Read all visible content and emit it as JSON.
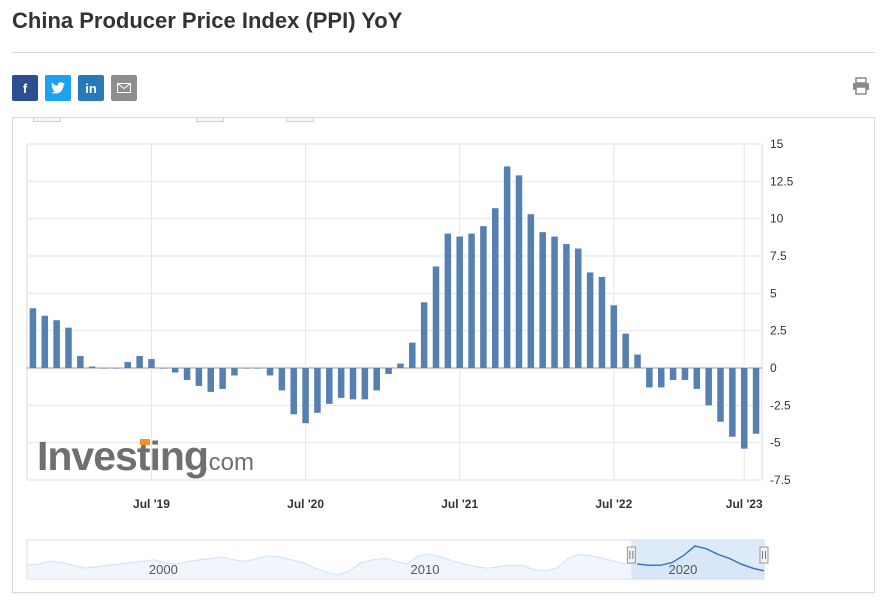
{
  "page": {
    "title": "China Producer Price Index (PPI) YoY"
  },
  "share": {
    "facebook_icon": "f",
    "twitter_icon": "twitter-bird",
    "linkedin_icon": "in",
    "email_icon": "envelope",
    "print_icon": "printer"
  },
  "watermark": {
    "brand": "Investing",
    "suffix": ".com"
  },
  "colors": {
    "bar": "#5580b0",
    "grid": "#e6e6e6",
    "navigator_fill": "#dbe9f8",
    "navigator_line": "#6fa0d6"
  },
  "chart_data": {
    "type": "bar",
    "series": [
      {
        "values": [
          4.0,
          3.5,
          3.2,
          2.7,
          0.8,
          0.1,
          0.0,
          0.0,
          0.4,
          0.8,
          0.6,
          0.0,
          -0.3,
          -0.8,
          -1.2,
          -1.6,
          -1.4,
          -0.5,
          0.0,
          0.0,
          -0.5,
          -1.5,
          -3.1,
          -3.7,
          -3.0,
          -2.4,
          -2.0,
          -2.1,
          -2.1,
          -1.5,
          -0.4,
          0.3,
          1.7,
          4.4,
          6.8,
          9.0,
          8.8,
          9.0,
          9.5,
          10.7,
          13.5,
          12.9,
          10.3,
          9.1,
          8.8,
          8.3,
          8.0,
          6.4,
          6.1,
          4.2,
          2.3,
          0.9,
          -1.3,
          -1.3,
          -0.8,
          -0.8,
          -1.4,
          -2.5,
          -3.6,
          -4.6,
          -5.4,
          -4.4
        ]
      }
    ],
    "x_tick_labels": [
      "Jul '19",
      "Jul '20",
      "Jul '21",
      "Jul '22",
      "Jul '23"
    ],
    "x_tick_bar_index": [
      10,
      23,
      36,
      49,
      60
    ],
    "y_ticks": [
      15,
      12.5,
      10,
      7.5,
      5,
      2.5,
      0,
      -2.5,
      -5,
      -7.5
    ],
    "y_tick_labels": [
      "15",
      "12.5",
      "10",
      "7.5",
      "5",
      "2.5",
      "0",
      "-2.5",
      "-5",
      "-7.5"
    ],
    "ylim": [
      -7.5,
      15
    ],
    "y_axis_position": "right",
    "grid": true,
    "navigator": {
      "labels": [
        "2000",
        "2010",
        "2020"
      ],
      "label_fraction": [
        0.185,
        0.54,
        0.89
      ],
      "selected_range_fraction": [
        0.82,
        1.0
      ],
      "series": [
        -1,
        0,
        2,
        1,
        -1,
        -3,
        -2,
        -1,
        0,
        1,
        2,
        3,
        1,
        0,
        2,
        3,
        4,
        5,
        3,
        2,
        4,
        6,
        5,
        3,
        1,
        -3,
        -6,
        -8,
        -5,
        1,
        3,
        4,
        2,
        0,
        6,
        7,
        5,
        2,
        0,
        -2,
        -3,
        -2,
        -1,
        -1,
        -4,
        -5,
        -3,
        4,
        7,
        6,
        4,
        2,
        0,
        0,
        -1,
        -1,
        1,
        6,
        13,
        11,
        7,
        4,
        0,
        -3,
        -5
      ]
    }
  }
}
